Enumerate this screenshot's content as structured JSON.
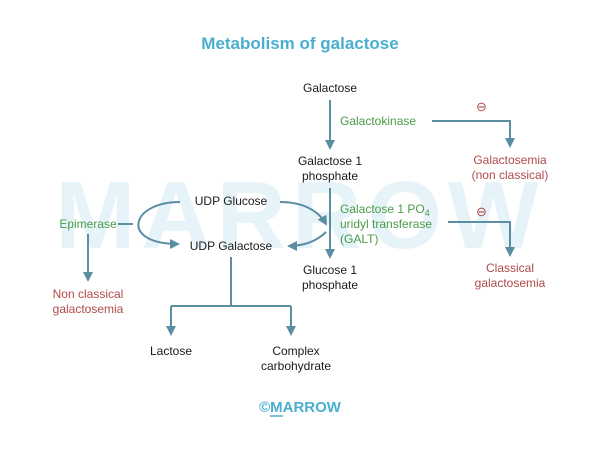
{
  "title": "Metabolism of galactose",
  "watermark": "MARROW",
  "nodes": {
    "galactose": "Galactose",
    "galactose_1_phosphate": [
      "Galactose 1",
      "phosphate"
    ],
    "glucose_1_phosphate": [
      "Glucose 1",
      "phosphate"
    ],
    "udp_glucose": "UDP Glucose",
    "udp_galactose": "UDP Galactose",
    "lactose": "Lactose",
    "complex_carbohydrate": [
      "Complex",
      "carbohydrate"
    ]
  },
  "enzymes": {
    "galactokinase": "Galactokinase",
    "galt": {
      "line1": "Galactose 1 PO",
      "line1_sub": "4",
      "line2": "uridyl transferase",
      "line3": "(GALT)"
    },
    "epimerase": "Epimerase"
  },
  "conditions": {
    "non_classical_galactosemia_right": [
      "Galactosemia",
      "(non classical)"
    ],
    "classical_galactosemia": [
      "Classical",
      "galactosemia"
    ],
    "non_classical_galactosemia_left": [
      "Non classical",
      "galactosemia"
    ]
  },
  "inhibition_symbol": "⊖",
  "copyright": "©MARROW",
  "colors": {
    "title": "#4aaed0",
    "enzyme": "#4a9a48",
    "disease": "#b14a4a",
    "arrow": "#5b8ea3",
    "watermark": "#e6f4fa"
  },
  "icons": [
    "inhibition-minus-icon",
    "copyright-icon"
  ]
}
